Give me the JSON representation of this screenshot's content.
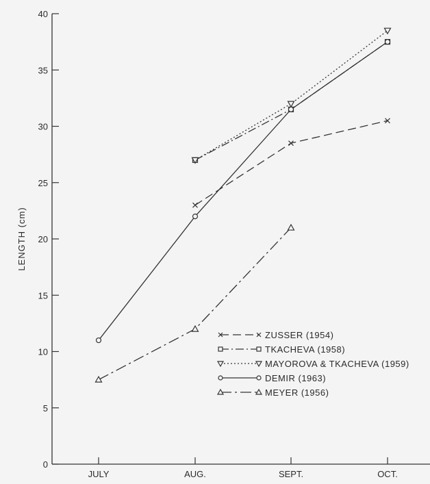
{
  "chart_data": {
    "type": "line",
    "title": "",
    "xlabel": "",
    "ylabel": "LENGTH (cm)",
    "categories": [
      "JULY",
      "AUG.",
      "SEPT.",
      "OCT."
    ],
    "ylim": [
      0,
      40
    ],
    "yticks": [
      0,
      5,
      10,
      15,
      20,
      25,
      30,
      35,
      40
    ],
    "grid": false,
    "legend_position": "bottom-right",
    "series": [
      {
        "name": "ZUSSER (1954)",
        "marker": "x",
        "dash": "long-dash",
        "values": [
          null,
          23,
          28.5,
          30.5
        ]
      },
      {
        "name": "TKACHEVA (1958)",
        "marker": "square",
        "dash": "dash-dot",
        "values": [
          null,
          27,
          31.5,
          37.5
        ]
      },
      {
        "name": "MAYOROVA & TKACHEVA (1959)",
        "marker": "triangle-down",
        "dash": "dotted",
        "values": [
          null,
          27,
          32,
          38.5
        ]
      },
      {
        "name": "DEMIR (1963)",
        "marker": "circle",
        "dash": "solid",
        "values": [
          11,
          22,
          31.5,
          37.5
        ]
      },
      {
        "name": "MEYER (1956)",
        "marker": "triangle-up",
        "dash": "dash-dot-long",
        "values": [
          7.5,
          12,
          21,
          null
        ]
      }
    ]
  }
}
